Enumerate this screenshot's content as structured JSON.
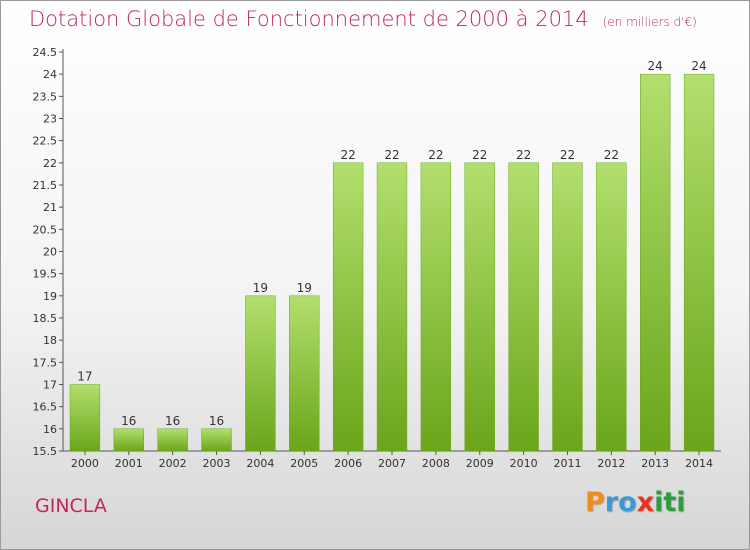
{
  "title": "Dotation Globale de Fonctionnement de 2000 à 2014",
  "subtitle": "(en milliers d'€)",
  "commune": "GINCLA",
  "logo": {
    "letters": [
      "P",
      "r",
      "o",
      "x",
      "i",
      "t",
      "i"
    ],
    "colors": [
      "#f08c1e",
      "#3a9ad9",
      "#3a9ad9",
      "#e8331e",
      "#2e9b3e",
      "#2e9b3e",
      "#2e9b3e"
    ]
  },
  "colors": {
    "bar_light": "#b2df6e",
    "bar_dark": "#6aa51a",
    "title": "#c0285a"
  },
  "chart_data": {
    "type": "bar",
    "categories": [
      "2000",
      "2001",
      "2002",
      "2003",
      "2004",
      "2005",
      "2006",
      "2007",
      "2008",
      "2009",
      "2010",
      "2011",
      "2012",
      "2013",
      "2014"
    ],
    "values": [
      17,
      16,
      16,
      16,
      19,
      19,
      22,
      22,
      22,
      22,
      22,
      22,
      22,
      24,
      24
    ],
    "data_labels": [
      "17",
      "16",
      "16",
      "16",
      "19",
      "19",
      "22",
      "22",
      "22",
      "22",
      "22",
      "22",
      "22",
      "24",
      "24"
    ],
    "ylim": [
      15.5,
      24.5
    ],
    "yticks": [
      "15.5",
      "16",
      "16.5",
      "17",
      "17.5",
      "18",
      "18.5",
      "19",
      "19.5",
      "20",
      "20.5",
      "21",
      "21.5",
      "22",
      "22.5",
      "23",
      "23.5",
      "24",
      "24.5"
    ],
    "grid": false,
    "legend": "none"
  }
}
